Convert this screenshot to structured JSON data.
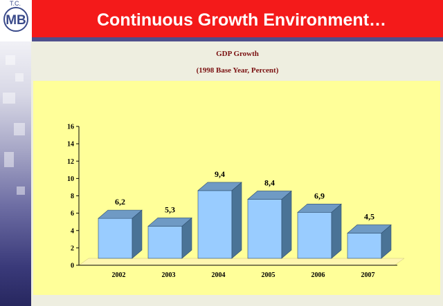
{
  "slide": {
    "title": "Continuous Growth Environment…"
  },
  "logo": {
    "top_text": "T.C.",
    "monogram": "MB"
  },
  "chart_data": {
    "type": "bar",
    "title": "GDP Growth",
    "subtitle": "(1998 Base Year, Percent)",
    "categories": [
      "2002",
      "2003",
      "2004",
      "2005",
      "2006",
      "2007"
    ],
    "values": [
      6.2,
      5.3,
      9.4,
      8.4,
      6.9,
      4.5
    ],
    "value_labels": [
      "6,2",
      "5,3",
      "9,4",
      "8,4",
      "6,9",
      "4,5"
    ],
    "ylim": [
      0,
      16
    ],
    "yticks": [
      0,
      2,
      4,
      6,
      8,
      10,
      12,
      14,
      16
    ],
    "xlabel": "",
    "ylabel": "",
    "grid": false,
    "style": "3d-bars",
    "colors": {
      "bar_front": "#99ccff",
      "bar_side": "#4a7396",
      "bar_top": "#6f9ac4",
      "panel": "#ffff99"
    }
  }
}
